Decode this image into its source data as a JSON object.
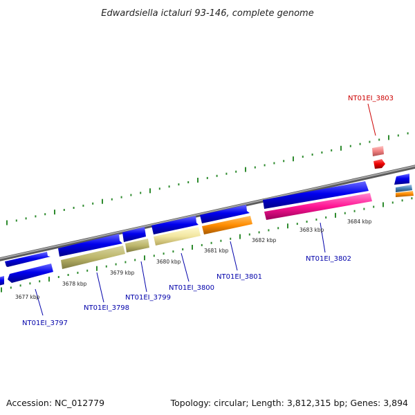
{
  "title": "Edwardsiella ictaluri 93-146, complete genome",
  "footer": {
    "accession": "Accession: NC_012779",
    "summary": "Topology: circular; Length: 3,812,315 bp; Genes: 3,894"
  },
  "colors": {
    "backbone": "#8c8c8c",
    "ticks": "#2e8b2e",
    "cds": "#0000ee",
    "highlight_label": "#cc0000",
    "normal_label": "#0000aa"
  },
  "scale_labels": [
    "3677 kbp",
    "3678 kbp",
    "3679 kbp",
    "3680 kbp",
    "3681 kbp",
    "3682 kbp",
    "3683 kbp",
    "3684 kbp"
  ],
  "gene_labels": [
    {
      "name": "NT01EI_3797",
      "color": "#0000aa"
    },
    {
      "name": "NT01EI_3798",
      "color": "#0000aa"
    },
    {
      "name": "NT01EI_3799",
      "color": "#0000aa"
    },
    {
      "name": "NT01EI_3800",
      "color": "#0000aa"
    },
    {
      "name": "NT01EI_3801",
      "color": "#0000aa"
    },
    {
      "name": "NT01EI_3802",
      "color": "#0000aa"
    },
    {
      "name": "NT01EI_3803",
      "color": "#cc0000"
    }
  ]
}
